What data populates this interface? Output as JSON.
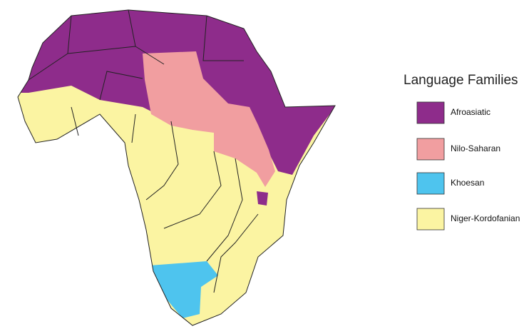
{
  "legend": {
    "title": "Language Families",
    "items": [
      {
        "label": "Afroasiatic",
        "color": "#8e2c8b"
      },
      {
        "label": "Nilo-Saharan",
        "color": "#f19ea0"
      },
      {
        "label": "Khoesan",
        "color": "#4ec4ee"
      },
      {
        "label": "Niger-Kordofanian",
        "color": "#fbf4a2"
      }
    ]
  }
}
